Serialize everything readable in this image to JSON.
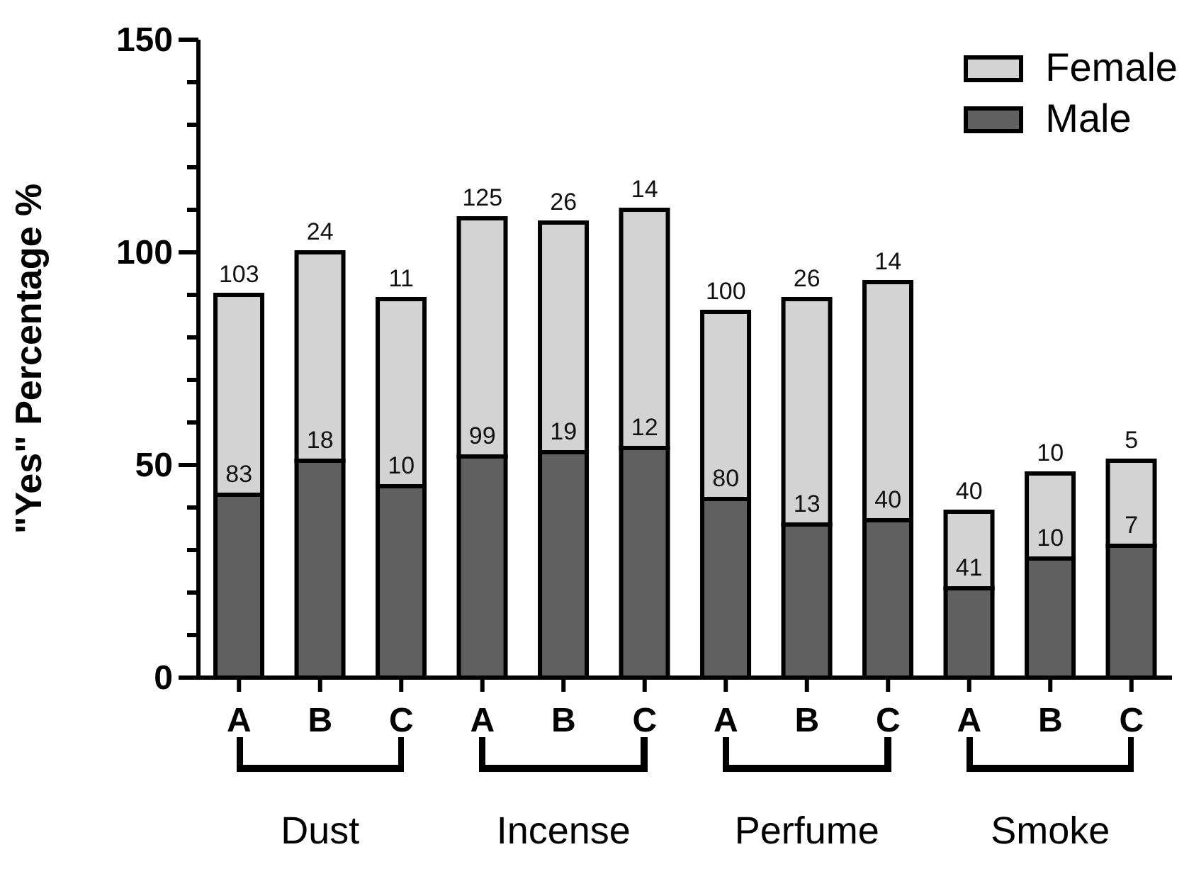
{
  "chart_data": {
    "type": "bar",
    "stacked": true,
    "ylabel": "\"Yes\" Percentage %",
    "categories": [
      "A",
      "B",
      "C",
      "A",
      "B",
      "C",
      "A",
      "B",
      "C",
      "A",
      "B",
      "C"
    ],
    "series": [
      {
        "name": "Male",
        "color": "#606060",
        "values": [
          43,
          51,
          45,
          52,
          53,
          54,
          42,
          36,
          37,
          21,
          28,
          31
        ]
      },
      {
        "name": "Female",
        "color": "#d3d3d3",
        "values": [
          47,
          49,
          44,
          56,
          54,
          56,
          44,
          53,
          56,
          18,
          20,
          20
        ]
      }
    ],
    "ylim": [
      0,
      150
    ],
    "yticks": [
      0,
      {
        "value": 10,
        "label": null
      },
      {
        "value": 20,
        "label": null
      },
      {
        "value": 30,
        "label": null
      },
      {
        "value": 40,
        "label": null
      },
      50,
      {
        "value": 60,
        "label": null
      },
      {
        "value": 70,
        "label": null
      },
      {
        "value": 80,
        "label": null
      },
      {
        "value": 90,
        "label": null
      },
      100,
      {
        "value": 110,
        "label": null
      },
      {
        "value": 120,
        "label": null
      },
      {
        "value": 130,
        "label": null
      },
      {
        "value": 140,
        "label": null
      },
      150
    ],
    "grid": false,
    "legend": "top right",
    "annotations": [
      "Dust",
      "Incense",
      "Perfume",
      "Smoke",
      "83",
      "103",
      "18",
      "24",
      "10",
      "11",
      "99",
      "125",
      "19",
      "26",
      "12",
      "14",
      "80",
      "100",
      "13",
      "26",
      "40",
      "14",
      "41",
      "40",
      "10",
      "10",
      "7",
      "5"
    ]
  }
}
